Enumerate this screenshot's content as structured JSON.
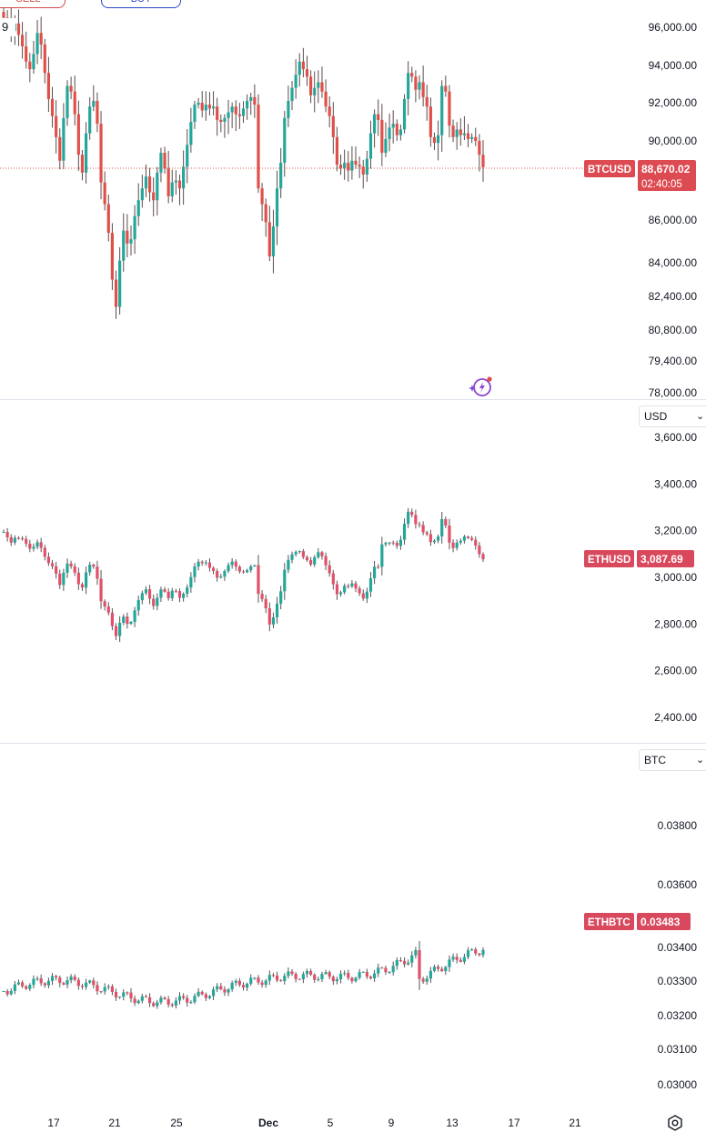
{
  "top_buttons": {
    "sell_label": "SELL",
    "buy_label": "BUY"
  },
  "interval_label": "9",
  "colors": {
    "up": "#26a69a",
    "btc_down": "#e0504a",
    "eth_down": "#e0506a",
    "tag": "#d9495d",
    "btc_tag": "#dd4b52",
    "grid_line": "#e0e3eb",
    "buy": "#2a48c8",
    "sell": "#d24a4a"
  },
  "x_axis": {
    "labels": [
      "17",
      "21",
      "25",
      "Dec",
      "5",
      "9",
      "13",
      "17",
      "21"
    ]
  },
  "chart_data": [
    {
      "type": "candlestick",
      "symbol": "BTCUSD",
      "ylim": [
        78000,
        97000
      ],
      "y_ticks": [
        "96,000.00",
        "94,000.00",
        "92,000.00",
        "90,000.00",
        "86,000.00",
        "84,000.00",
        "82,400.00",
        "80,800.00",
        "79,400.00",
        "78,000.00"
      ],
      "y_tick_values": [
        96000,
        94000,
        92000,
        90000,
        86000,
        84000,
        82400,
        80800,
        79400,
        78000
      ],
      "last_price": "88,670.02",
      "last_value": 88670.02,
      "countdown": "02:40:05",
      "ai_icon": "sparkle-lightning-icon",
      "series_close": [
        96500,
        96300,
        95800,
        96200,
        95600,
        95000,
        94200,
        93800,
        94600,
        95700,
        95100,
        93600,
        92200,
        91300,
        90200,
        89000,
        91200,
        92900,
        92600,
        91400,
        89300,
        88400,
        90400,
        91800,
        92100,
        90900,
        87900,
        86800,
        85400,
        83200,
        81900,
        84100,
        85500,
        84900,
        85100,
        86200,
        87000,
        87600,
        88200,
        87400,
        87000,
        88400,
        89400,
        88600,
        87200,
        87900,
        88000,
        87600,
        88700,
        89800,
        91000,
        91900,
        92000,
        91600,
        91900,
        91700,
        91800,
        91100,
        91000,
        91200,
        91500,
        91800,
        91400,
        91300,
        91700,
        92100,
        92300,
        91900,
        87600,
        86800,
        85900,
        84300,
        85700,
        87600,
        88900,
        91200,
        92100,
        92800,
        93500,
        94200,
        93800,
        93400,
        92400,
        92800,
        93100,
        92600,
        91800,
        91300,
        90200,
        88800,
        88600,
        88900,
        88500,
        89000,
        88800,
        88700,
        88300,
        89100,
        90400,
        91400,
        91100,
        89400,
        90100,
        90700,
        90900,
        90300,
        90600,
        92200,
        93600,
        93400,
        92700,
        93100,
        92300,
        91800,
        90200,
        89900,
        90300,
        92900,
        92600,
        90800,
        90200,
        90600,
        90300,
        90400,
        90100,
        90200,
        90000,
        89300,
        88670
      ]
    },
    {
      "type": "candlestick",
      "symbol": "ETHUSD",
      "currency_select": "USD",
      "ylim": [
        2400,
        3600
      ],
      "y_ticks": [
        "3,600.00",
        "3,400.00",
        "3,200.00",
        "3,000.00",
        "2,800.00",
        "2,600.00",
        "2,400.00"
      ],
      "y_tick_values": [
        3600,
        3400,
        3200,
        3000,
        2800,
        2600,
        2400
      ],
      "last_price": "3,087.69",
      "last_value": 3087.69
    },
    {
      "type": "candlestick",
      "symbol": "ETHBTC",
      "currency_select": "BTC",
      "ylim": [
        0.03,
        0.038
      ],
      "y_ticks": [
        "0.03800",
        "0.03600",
        "0.03400",
        "0.03300",
        "0.03200",
        "0.03100",
        "0.03000"
      ],
      "y_tick_values": [
        0.038,
        0.036,
        0.034,
        0.033,
        0.032,
        0.031,
        0.03
      ],
      "last_price": "0.03483",
      "last_value": 0.03483
    }
  ],
  "settings_icon": "settings-gear-icon"
}
